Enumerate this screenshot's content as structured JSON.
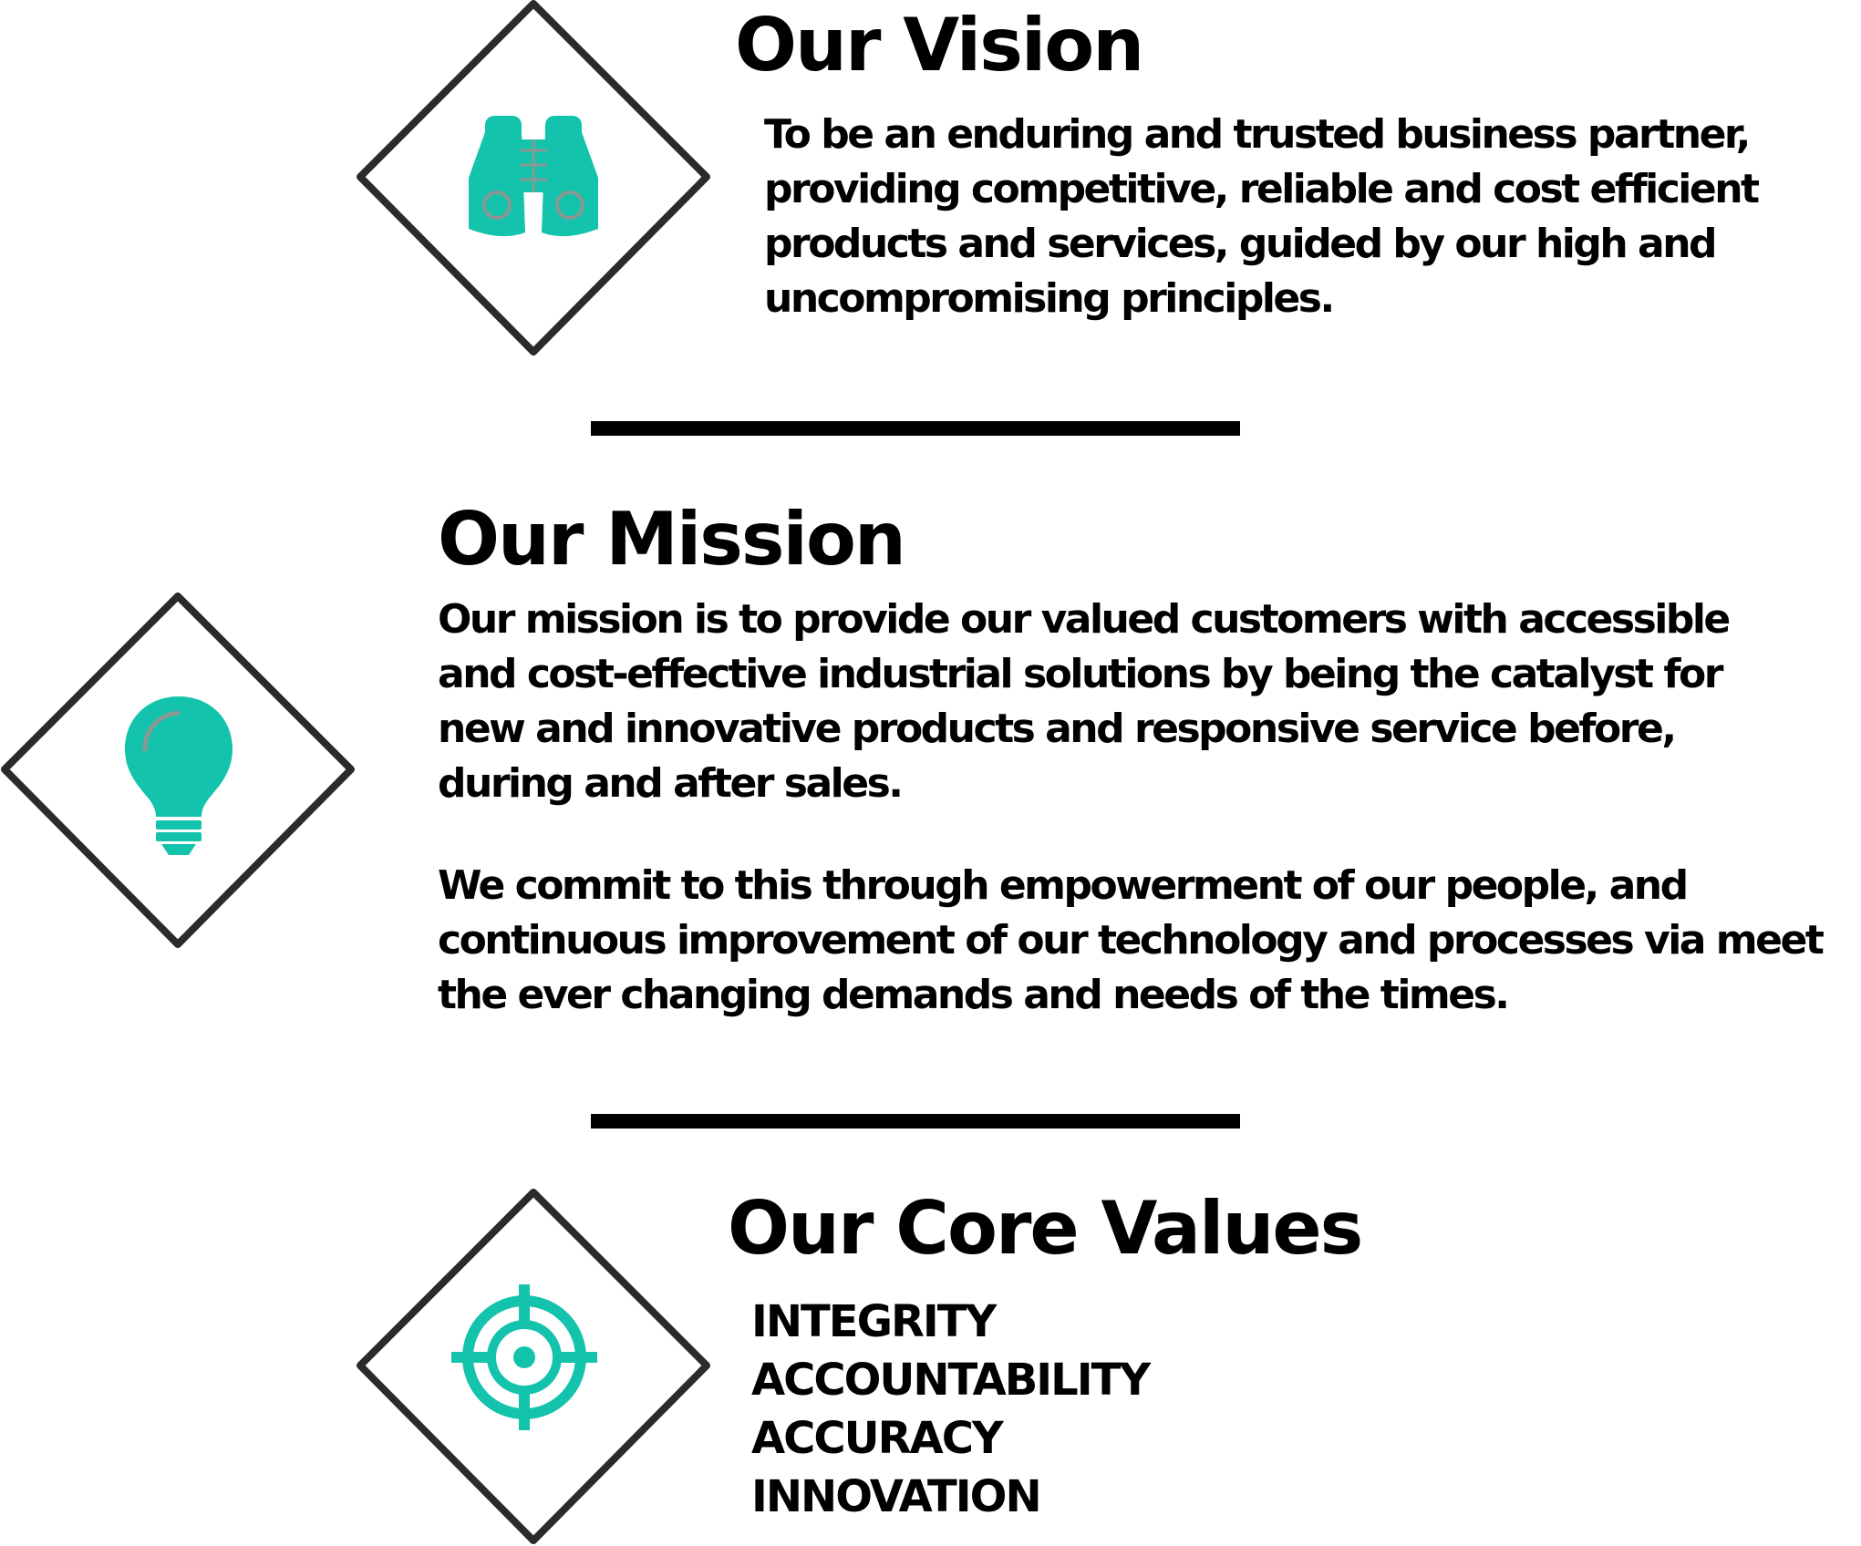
{
  "colors": {
    "accent": "#14c3ac",
    "frame": "#2b2b2b",
    "text": "#000000",
    "highlight": "#8a9894"
  },
  "vision": {
    "icon": "binoculars-icon",
    "title": "Our Vision",
    "text": "To be an enduring and trusted business partner, providing competitive, reliable and cost efficient products and services, guided by our high and uncompromising principles."
  },
  "mission": {
    "icon": "lightbulb-icon",
    "title": "Our Mission",
    "text1": "Our mission is to provide our valued customers with accessible and cost-effective industrial solutions by being the catalyst for new and innovative products and responsive service before, during and after sales.",
    "text2": "We commit to this through empowerment of our people, and continuous improvement of our technology and processes via meet the ever changing demands and needs of the times."
  },
  "core_values": {
    "icon": "target-icon",
    "title": "Our Core Values",
    "items": [
      "INTEGRITY",
      "ACCOUNTABILITY",
      "ACCURACY",
      "INNOVATION"
    ]
  }
}
